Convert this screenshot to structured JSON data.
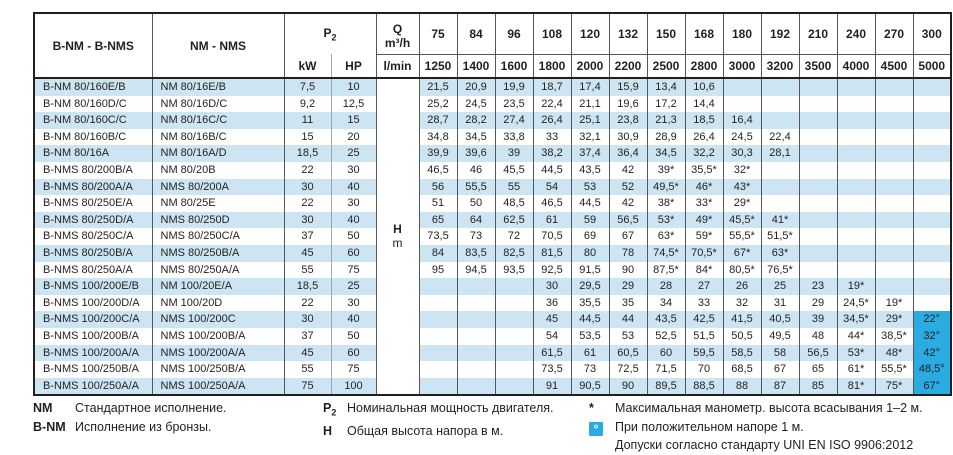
{
  "table": {
    "col_model_bnm": "B-NM - B-NMS",
    "col_model_nm": "NM - NMS",
    "p2_label_base": "P",
    "p2_label_sub": "2",
    "kw_label": "kW",
    "hp_label": "HP",
    "q_label": "Q",
    "q_unit": "m³/h",
    "lmin_label": "l/min",
    "h_label": "H",
    "h_unit": "m",
    "flow_m3h": [
      "75",
      "84",
      "96",
      "108",
      "120",
      "132",
      "150",
      "168",
      "180",
      "192",
      "210",
      "240",
      "270",
      "300"
    ],
    "flow_lmin": [
      "1250",
      "1400",
      "1600",
      "1800",
      "2000",
      "2200",
      "2500",
      "2800",
      "3000",
      "3200",
      "3500",
      "4000",
      "4500",
      "5000"
    ],
    "rows": [
      {
        "bnm": "B-NM 80/160E/B",
        "nm": "NM 80/16E/B",
        "kw": "7,5",
        "hp": "10",
        "h": [
          "21,5",
          "20,9",
          "19,9",
          "18,7",
          "17,4",
          "15,9",
          "13,4",
          "10,6",
          "",
          "",
          "",
          "",
          "",
          ""
        ]
      },
      {
        "bnm": "B-NM 80/160D/C",
        "nm": "NM 80/16D/C",
        "kw": "9,2",
        "hp": "12,5",
        "h": [
          "25,2",
          "24,5",
          "23,5",
          "22,4",
          "21,1",
          "19,6",
          "17,2",
          "14,4",
          "",
          "",
          "",
          "",
          "",
          ""
        ]
      },
      {
        "bnm": "B-NM 80/160C/C",
        "nm": "NM 80/16C/C",
        "kw": "11",
        "hp": "15",
        "h": [
          "28,7",
          "28,2",
          "27,4",
          "26,4",
          "25,1",
          "23,8",
          "21,3",
          "18,5",
          "16,4",
          "",
          "",
          "",
          "",
          ""
        ]
      },
      {
        "bnm": "B-NM 80/160B/C",
        "nm": "NM 80/16B/C",
        "kw": "15",
        "hp": "20",
        "h": [
          "34,8",
          "34,5",
          "33,8",
          "33",
          "32,1",
          "30,9",
          "28,9",
          "26,4",
          "24,5",
          "22,4",
          "",
          "",
          "",
          ""
        ]
      },
      {
        "bnm": "B-NM 80/16A",
        "nm": "NM 80/16A/D",
        "kw": "18,5",
        "hp": "25",
        "h": [
          "39,9",
          "39,6",
          "39",
          "38,2",
          "37,4",
          "36,4",
          "34,5",
          "32,2",
          "30,3",
          "28,1",
          "",
          "",
          "",
          ""
        ]
      },
      {
        "bnm": "B-NMS 80/200B/A",
        "nm": "NM 80/20B",
        "kw": "22",
        "hp": "30",
        "h": [
          "46,5",
          "46",
          "45,5",
          "44,5",
          "43,5",
          "42",
          "39*",
          "35,5*",
          "32*",
          "",
          "",
          "",
          "",
          ""
        ]
      },
      {
        "bnm": "B-NMS 80/200A/A",
        "nm": "NMS 80/200A",
        "kw": "30",
        "hp": "40",
        "h": [
          "56",
          "55,5",
          "55",
          "54",
          "53",
          "52",
          "49,5*",
          "46*",
          "43*",
          "",
          "",
          "",
          "",
          ""
        ]
      },
      {
        "bnm": "B-NMS 80/250E/A",
        "nm": "NM 80/25E",
        "kw": "22",
        "hp": "30",
        "h": [
          "51",
          "50",
          "48,5",
          "46,5",
          "44,5",
          "42",
          "38*",
          "33*",
          "29*",
          "",
          "",
          "",
          "",
          ""
        ]
      },
      {
        "bnm": "B-NMS 80/250D/A",
        "nm": "NMS 80/250D",
        "kw": "30",
        "hp": "40",
        "h": [
          "65",
          "64",
          "62,5",
          "61",
          "59",
          "56,5",
          "53*",
          "49*",
          "45,5*",
          "41*",
          "",
          "",
          "",
          ""
        ]
      },
      {
        "bnm": "B-NMS 80/250C/A",
        "nm": "NMS 80/250C/A",
        "kw": "37",
        "hp": "50",
        "h": [
          "73,5",
          "73",
          "72",
          "70,5",
          "69",
          "67",
          "63*",
          "59*",
          "55,5*",
          "51,5*",
          "",
          "",
          "",
          ""
        ]
      },
      {
        "bnm": "B-NMS 80/250B/A",
        "nm": "NMS 80/250B/A",
        "kw": "45",
        "hp": "60",
        "h": [
          "84",
          "83,5",
          "82,5",
          "81,5",
          "80",
          "78",
          "74,5*",
          "70,5*",
          "67*",
          "63*",
          "",
          "",
          "",
          ""
        ]
      },
      {
        "bnm": "B-NMS 80/250A/A",
        "nm": "NMS 80/250A/A",
        "kw": "55",
        "hp": "75",
        "h": [
          "95",
          "94,5",
          "93,5",
          "92,5",
          "91,5",
          "90",
          "87,5*",
          "84*",
          "80,5*",
          "76,5*",
          "",
          "",
          "",
          ""
        ]
      },
      {
        "bnm": "B-NMS 100/200E/B",
        "nm": "NM 100/20E/A",
        "kw": "18,5",
        "hp": "25",
        "h": [
          "",
          "",
          "",
          "30",
          "29,5",
          "29",
          "28",
          "27",
          "26",
          "25",
          "23",
          "19*",
          "",
          ""
        ]
      },
      {
        "bnm": "B-NMS 100/200D/A",
        "nm": "NM 100/20D",
        "kw": "22",
        "hp": "30",
        "h": [
          "",
          "",
          "",
          "36",
          "35,5",
          "35",
          "34",
          "33",
          "32",
          "31",
          "29",
          "24,5*",
          "19*",
          ""
        ]
      },
      {
        "bnm": "B-NMS 100/200C/A",
        "nm": "NMS 100/200C",
        "kw": "30",
        "hp": "40",
        "h": [
          "",
          "",
          "",
          "45",
          "44,5",
          "44",
          "43,5",
          "42,5",
          "41,5",
          "40,5",
          "39",
          "34,5*",
          "29*",
          "22°"
        ]
      },
      {
        "bnm": "B-NMS 100/200B/A",
        "nm": "NMS 100/200B/A",
        "kw": "37",
        "hp": "50",
        "h": [
          "",
          "",
          "",
          "54",
          "53,5",
          "53",
          "52,5",
          "51,5",
          "50,5",
          "49,5",
          "48",
          "44*",
          "38,5*",
          "32°"
        ]
      },
      {
        "bnm": "B-NMS 100/200A/A",
        "nm": "NMS 100/200A/A",
        "kw": "45",
        "hp": "60",
        "h": [
          "",
          "",
          "",
          "61,5",
          "61",
          "60,5",
          "60",
          "59,5",
          "58,5",
          "58",
          "56,5",
          "53*",
          "48*",
          "42°"
        ]
      },
      {
        "bnm": "B-NMS 100/250B/A",
        "nm": "NMS 100/250B/A",
        "kw": "55",
        "hp": "75",
        "h": [
          "",
          "",
          "",
          "73,5",
          "73",
          "72,5",
          "71,5",
          "70",
          "68,5",
          "67",
          "65",
          "61*",
          "55,5*",
          "48,5°"
        ]
      },
      {
        "bnm": "B-NMS 100/250A/A",
        "nm": "NMS 100/250A/A",
        "kw": "75",
        "hp": "100",
        "h": [
          "",
          "",
          "",
          "91",
          "90,5",
          "90",
          "89,5",
          "88,5",
          "88",
          "87",
          "85",
          "81*",
          "75*",
          "67°"
        ]
      }
    ]
  },
  "legend": {
    "items_a": [
      {
        "term": "NM",
        "desc": "Стандартное исполнение."
      },
      {
        "term": "B-NM",
        "desc": "Исполнение из бронзы."
      }
    ],
    "items_b": [
      {
        "term": "P",
        "sub": "2",
        "desc": "Номинальная мощность двигателя."
      },
      {
        "term": "H",
        "sub": "",
        "desc": "Общая высота напора в м."
      }
    ],
    "items_c": [
      {
        "marker": "*",
        "type": "star",
        "desc": "Максимальная манометр. высота всасывания 1–2 м."
      },
      {
        "marker": "°",
        "type": "degbox",
        "desc": "При положительном напоре 1 м."
      },
      {
        "marker": "",
        "type": "none",
        "desc": "Допуски согласно стандарту UNI EN ISO 9906:2012"
      }
    ]
  },
  "colors": {
    "stripe_blue": "#cde4f2",
    "highlight_cyan": "#2aabe2",
    "border_dark": "#231f20",
    "text": "#231f20"
  }
}
